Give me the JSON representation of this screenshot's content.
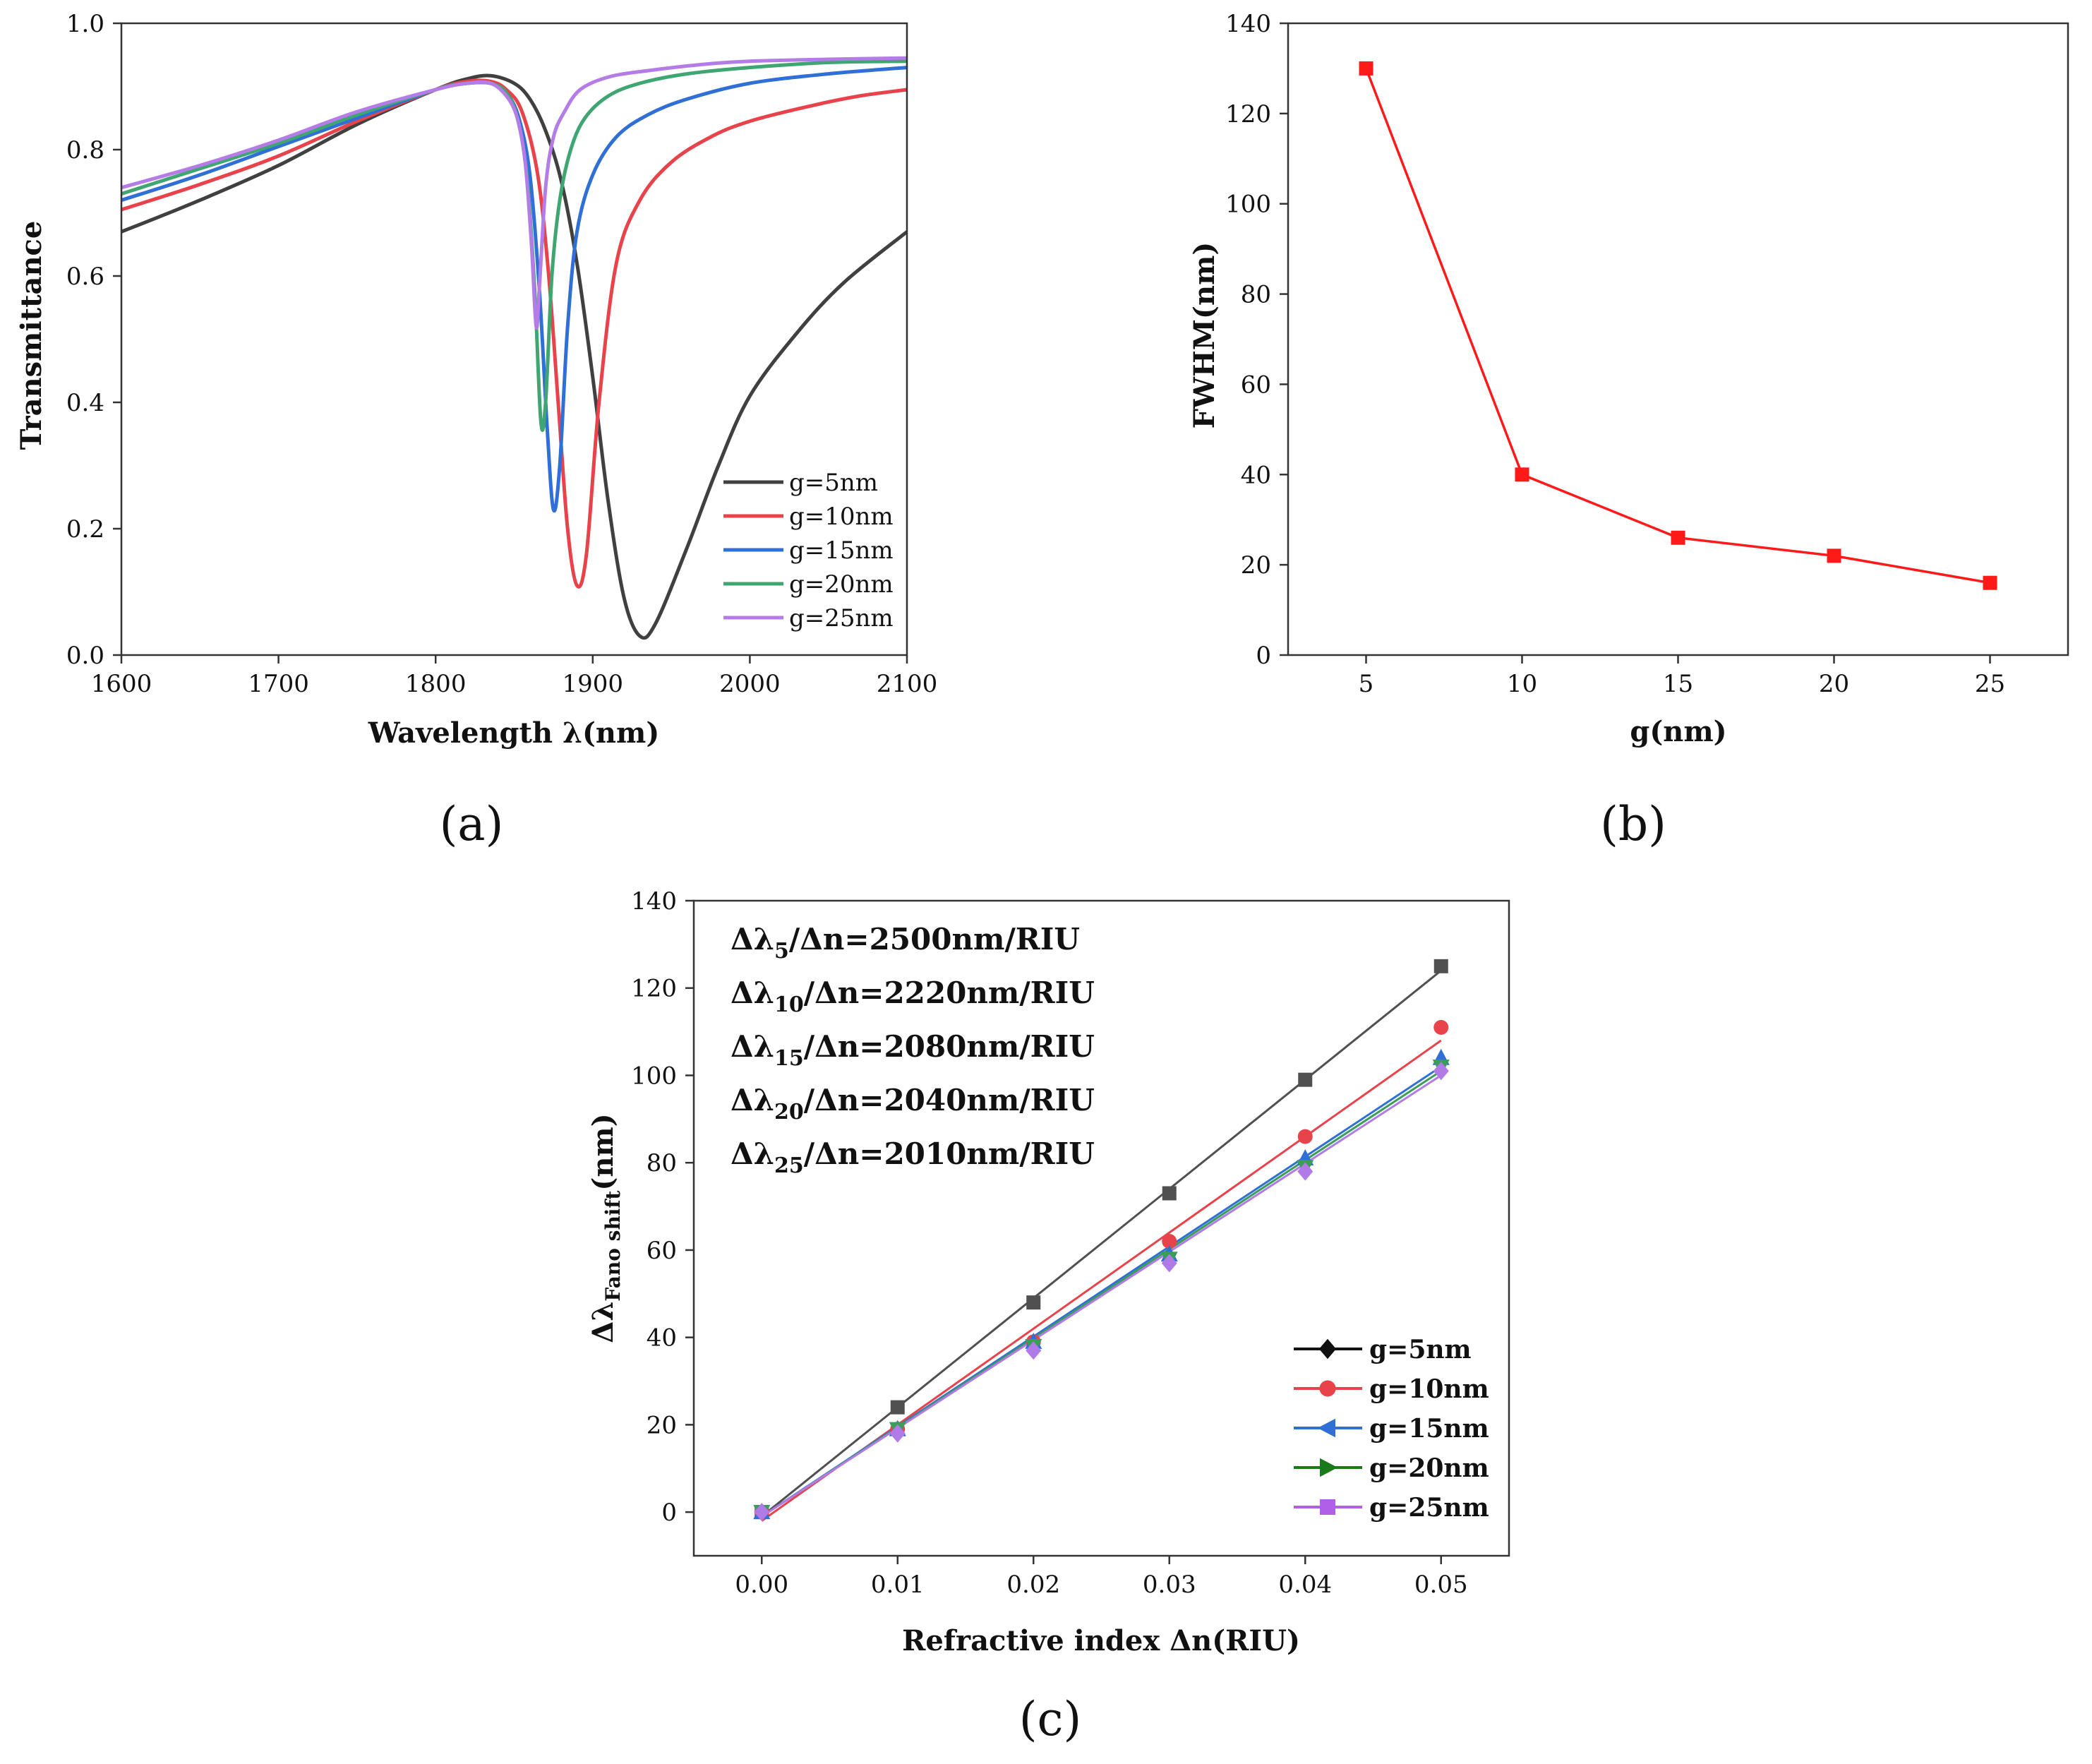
{
  "chart_data": [
    {
      "id": "a",
      "panel_label": "(a)",
      "type": "line",
      "xlabel": "Wavelength λ(nm)",
      "ylabel": "Transmittance",
      "xlim": [
        1600,
        2100
      ],
      "ylim": [
        0,
        1.0
      ],
      "x_ticks": [
        "1600",
        "1700",
        "1800",
        "1900",
        "2000",
        "2100"
      ],
      "y_ticks": [
        "0.0",
        "0.2",
        "0.4",
        "0.6",
        "0.8",
        "1.0"
      ],
      "legend_position": "bottom-right",
      "series": [
        {
          "name": "g=5nm",
          "color": "#404040",
          "x": [
            1600,
            1650,
            1700,
            1750,
            1800,
            1820,
            1835,
            1850,
            1860,
            1870,
            1880,
            1890,
            1900,
            1910,
            1920,
            1930,
            1940,
            1960,
            1980,
            2000,
            2030,
            2060,
            2100
          ],
          "y": [
            0.67,
            0.72,
            0.775,
            0.84,
            0.895,
            0.912,
            0.917,
            0.905,
            0.88,
            0.83,
            0.75,
            0.62,
            0.44,
            0.24,
            0.09,
            0.03,
            0.05,
            0.17,
            0.3,
            0.41,
            0.51,
            0.59,
            0.67
          ]
        },
        {
          "name": "g=10nm",
          "color": "#e8434a",
          "x": [
            1600,
            1650,
            1700,
            1750,
            1800,
            1820,
            1835,
            1845,
            1855,
            1865,
            1872,
            1878,
            1884,
            1890,
            1896,
            1904,
            1915,
            1930,
            1950,
            1975,
            2000,
            2040,
            2070,
            2100
          ],
          "y": [
            0.705,
            0.745,
            0.79,
            0.845,
            0.895,
            0.908,
            0.908,
            0.895,
            0.86,
            0.76,
            0.6,
            0.4,
            0.2,
            0.11,
            0.16,
            0.4,
            0.62,
            0.72,
            0.78,
            0.82,
            0.845,
            0.87,
            0.885,
            0.895
          ]
        },
        {
          "name": "g=15nm",
          "color": "#2f6fd6",
          "x": [
            1600,
            1650,
            1700,
            1750,
            1800,
            1820,
            1835,
            1845,
            1853,
            1860,
            1866,
            1871,
            1875,
            1879,
            1884,
            1890,
            1900,
            1915,
            1935,
            1960,
            2000,
            2050,
            2100
          ],
          "y": [
            0.72,
            0.76,
            0.805,
            0.85,
            0.895,
            0.905,
            0.905,
            0.89,
            0.85,
            0.76,
            0.58,
            0.36,
            0.23,
            0.3,
            0.52,
            0.67,
            0.76,
            0.82,
            0.855,
            0.88,
            0.905,
            0.92,
            0.93
          ]
        },
        {
          "name": "g=20nm",
          "color": "#3fa672",
          "x": [
            1600,
            1650,
            1700,
            1750,
            1800,
            1820,
            1835,
            1845,
            1852,
            1858,
            1863,
            1867,
            1870,
            1874,
            1879,
            1886,
            1895,
            1910,
            1930,
            1960,
            2000,
            2050,
            2100
          ],
          "y": [
            0.73,
            0.77,
            0.81,
            0.855,
            0.895,
            0.905,
            0.905,
            0.89,
            0.85,
            0.76,
            0.58,
            0.37,
            0.4,
            0.6,
            0.72,
            0.8,
            0.85,
            0.885,
            0.905,
            0.92,
            0.93,
            0.938,
            0.94
          ]
        },
        {
          "name": "g=25nm",
          "color": "#b47ce6",
          "x": [
            1600,
            1650,
            1700,
            1750,
            1800,
            1820,
            1835,
            1845,
            1852,
            1857,
            1861,
            1864,
            1866,
            1870,
            1875,
            1882,
            1892,
            1910,
            1935,
            1970,
            2000,
            2050,
            2100
          ],
          "y": [
            0.74,
            0.775,
            0.815,
            0.86,
            0.895,
            0.905,
            0.905,
            0.885,
            0.85,
            0.78,
            0.65,
            0.52,
            0.58,
            0.74,
            0.82,
            0.86,
            0.895,
            0.915,
            0.925,
            0.935,
            0.94,
            0.943,
            0.945
          ]
        }
      ]
    },
    {
      "id": "b",
      "panel_label": "(b)",
      "type": "line",
      "xlabel": "g(nm)",
      "ylabel": "FWHM(nm)",
      "xlim": [
        2.5,
        27.5
      ],
      "ylim": [
        0,
        140
      ],
      "x_ticks": [
        "5",
        "10",
        "15",
        "20",
        "25"
      ],
      "y_ticks": [
        "0",
        "20",
        "40",
        "60",
        "80",
        "100",
        "120",
        "140"
      ],
      "series": [
        {
          "name": "FWHM",
          "color": "#ff1a1a",
          "marker": "square",
          "x": [
            5,
            10,
            15,
            20,
            25
          ],
          "y": [
            130,
            40,
            26,
            22,
            16
          ]
        }
      ]
    },
    {
      "id": "c",
      "panel_label": "(c)",
      "type": "scatter",
      "xlabel": "Refractive index Δn(RIU)",
      "ylabel_main": "Δλ",
      "ylabel_sub": "Fano shift",
      "ylabel_tail": "(nm)",
      "xlim": [
        -0.005,
        0.055
      ],
      "ylim": [
        -10,
        140
      ],
      "x_ticks": [
        "0.00",
        "0.01",
        "0.02",
        "0.03",
        "0.04",
        "0.05"
      ],
      "y_ticks": [
        "0",
        "20",
        "40",
        "60",
        "80",
        "100",
        "120",
        "140"
      ],
      "legend_position": "bottom-right",
      "annotations": [
        {
          "pre": "Δλ",
          "sub": "5",
          "post": "/Δn=2500nm/RIU"
        },
        {
          "pre": "Δλ",
          "sub": "10",
          "post": "/Δn=2220nm/RIU"
        },
        {
          "pre": "Δλ",
          "sub": "15",
          "post": "/Δn=2080nm/RIU"
        },
        {
          "pre": "Δλ",
          "sub": "20",
          "post": "/Δn=2040nm/RIU"
        },
        {
          "pre": "Δλ",
          "sub": "25",
          "post": "/Δn=2010nm/RIU"
        }
      ],
      "series": [
        {
          "name": "g=5nm",
          "color": "#505050",
          "legend_color": "#111111",
          "legend_marker": "diamond",
          "marker": "square",
          "x": [
            0,
            0.01,
            0.02,
            0.03,
            0.04,
            0.05
          ],
          "y": [
            0,
            24,
            48,
            73,
            99,
            125
          ],
          "fit": [
            -1,
            124
          ]
        },
        {
          "name": "g=10nm",
          "color": "#e8434a",
          "legend_color": "#e8434a",
          "legend_marker": "circle",
          "marker": "circle",
          "x": [
            0,
            0.01,
            0.02,
            0.03,
            0.04,
            0.05
          ],
          "y": [
            0,
            19,
            39,
            62,
            86,
            111
          ],
          "fit": [
            -2,
            108
          ]
        },
        {
          "name": "g=15nm",
          "color": "#2f6fd6",
          "legend_color": "#2f6fd6",
          "legend_marker": "triangle-left",
          "marker": "triangle-up",
          "x": [
            0,
            0.01,
            0.02,
            0.03,
            0.04,
            0.05
          ],
          "y": [
            0,
            19,
            39,
            59,
            81,
            104
          ],
          "fit": [
            -1,
            102
          ]
        },
        {
          "name": "g=20nm",
          "color": "#3c9c5a",
          "legend_color": "#1a7a1a",
          "legend_marker": "triangle-right",
          "marker": "triangle-down",
          "x": [
            0,
            0.01,
            0.02,
            0.03,
            0.04,
            0.05
          ],
          "y": [
            0,
            19,
            38,
            58,
            79,
            102
          ],
          "fit": [
            -1,
            101
          ]
        },
        {
          "name": "g=25nm",
          "color": "#b07be6",
          "legend_color": "#b060e8",
          "legend_marker": "square",
          "marker": "diamond",
          "x": [
            0,
            0.01,
            0.02,
            0.03,
            0.04,
            0.05
          ],
          "y": [
            0,
            18,
            37,
            57,
            78,
            101
          ],
          "fit": [
            -1,
            100
          ]
        }
      ]
    }
  ]
}
